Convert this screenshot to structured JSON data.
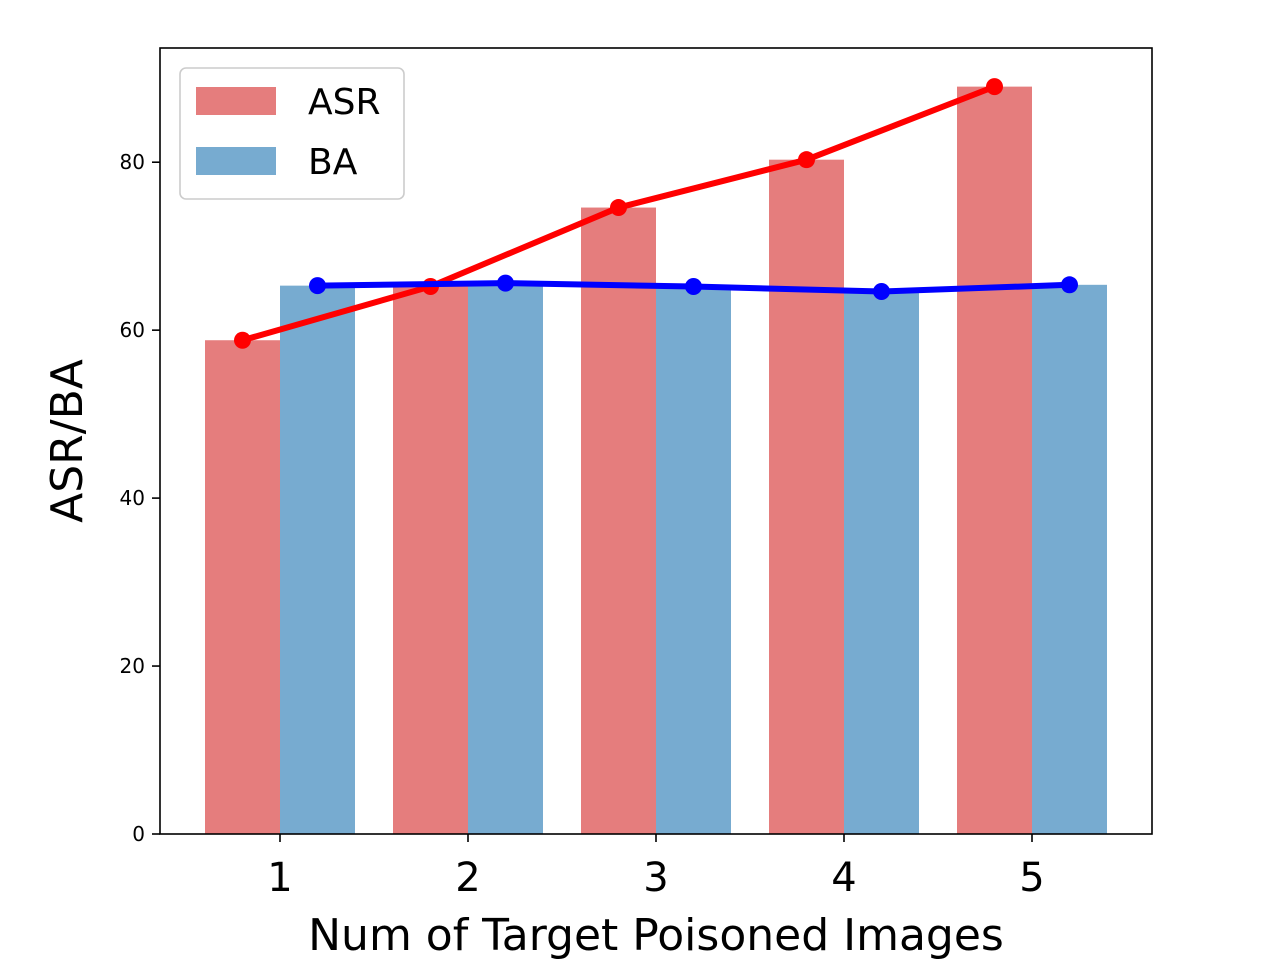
{
  "chart_data": {
    "type": "bar",
    "categories": [
      "1",
      "2",
      "3",
      "4",
      "5"
    ],
    "series": [
      {
        "name": "ASR",
        "values": [
          58.8,
          65.2,
          74.6,
          80.3,
          89.0
        ],
        "bar_color": "#e57d7d",
        "line_color": "#ff0000"
      },
      {
        "name": "BA",
        "values": [
          65.3,
          65.6,
          65.2,
          64.6,
          65.4
        ],
        "bar_color": "#77abd0",
        "line_color": "#0000ff"
      }
    ],
    "xlabel": "Num of Target Poisoned Images",
    "ylabel": "ASR/BA",
    "ylim": [
      0,
      93.6
    ],
    "yticks": [
      0,
      20,
      40,
      60,
      80
    ],
    "grid": false,
    "legend_position": "top-left"
  }
}
